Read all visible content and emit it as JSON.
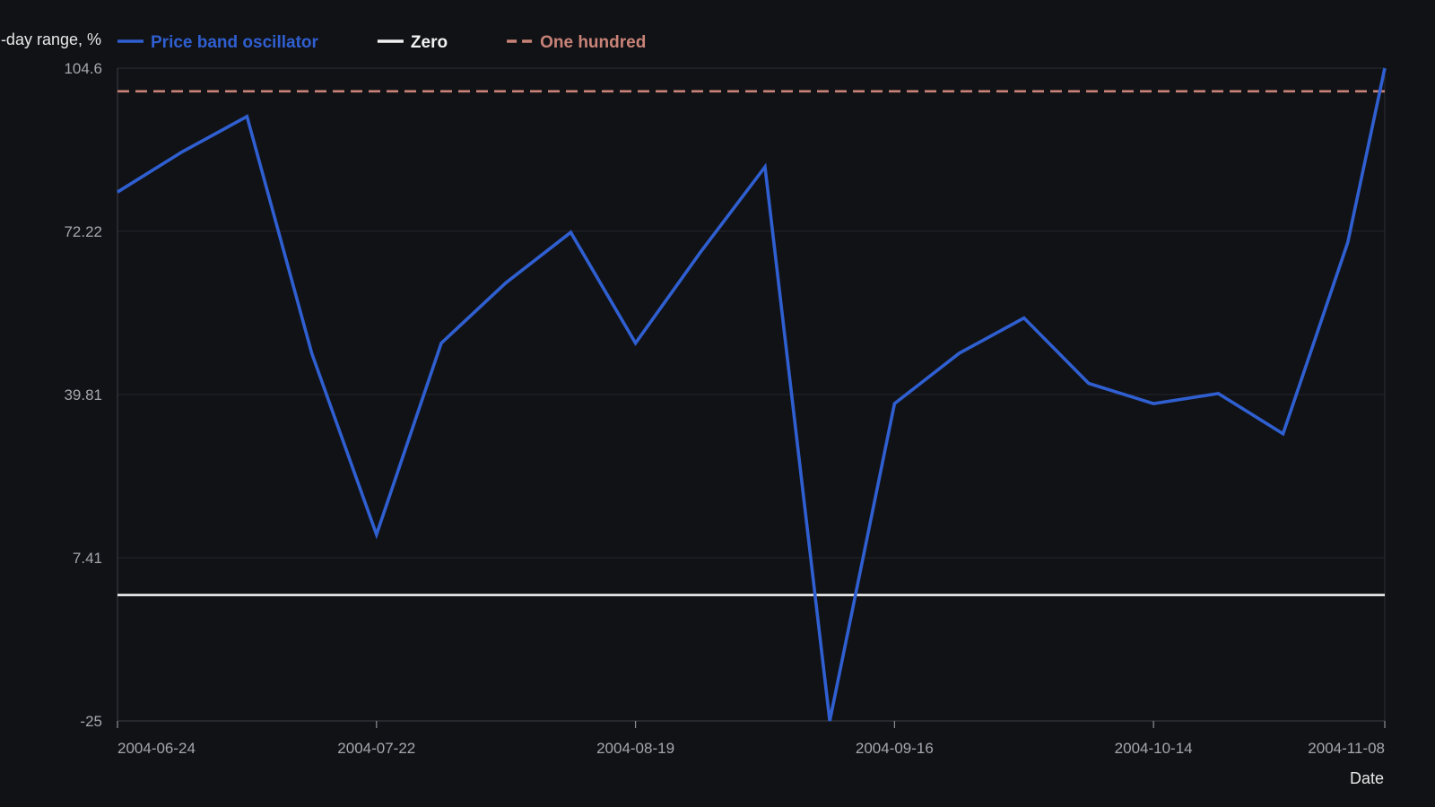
{
  "chart_data": {
    "type": "line",
    "ylabel": "…-day range, %",
    "xlabel": "Date",
    "ylim": [
      -25,
      104.6
    ],
    "y_ticks": [
      "104.6",
      "72.22",
      "39.81",
      "7.41",
      "-25"
    ],
    "x_ticks": [
      {
        "label": "2004-06-24",
        "date": "2004-06-24"
      },
      {
        "label": "2004-07-22",
        "date": "2004-07-22"
      },
      {
        "label": "2004-08-19",
        "date": "2004-08-19"
      },
      {
        "label": "2004-09-16",
        "date": "2004-09-16"
      },
      {
        "label": "2004-10-14",
        "date": "2004-10-14"
      },
      {
        "label": "2004-11-08",
        "date": "2004-11-08"
      }
    ],
    "xlim": [
      "2004-06-24",
      "2004-11-08"
    ],
    "grid": true,
    "legend_position": "top-left",
    "series": [
      {
        "name": "Price band oscillator",
        "color": "#2f5fd0",
        "style": "solid",
        "points": [
          {
            "x": "2004-06-24",
            "y": 80
          },
          {
            "x": "2004-07-01",
            "y": 88
          },
          {
            "x": "2004-07-08",
            "y": 95
          },
          {
            "x": "2004-07-15",
            "y": 48
          },
          {
            "x": "2004-07-22",
            "y": 12
          },
          {
            "x": "2004-07-29",
            "y": 50
          },
          {
            "x": "2004-08-05",
            "y": 62
          },
          {
            "x": "2004-08-12",
            "y": 72
          },
          {
            "x": "2004-08-19",
            "y": 50
          },
          {
            "x": "2004-08-26",
            "y": 68
          },
          {
            "x": "2004-09-02",
            "y": 85
          },
          {
            "x": "2004-09-09",
            "y": -25
          },
          {
            "x": "2004-09-16",
            "y": 38
          },
          {
            "x": "2004-09-23",
            "y": 48
          },
          {
            "x": "2004-09-30",
            "y": 55
          },
          {
            "x": "2004-10-07",
            "y": 42
          },
          {
            "x": "2004-10-14",
            "y": 38
          },
          {
            "x": "2004-10-21",
            "y": 40
          },
          {
            "x": "2004-10-28",
            "y": 32
          },
          {
            "x": "2004-11-04",
            "y": 70
          },
          {
            "x": "2004-11-08",
            "y": 104.6
          }
        ]
      },
      {
        "name": "Zero",
        "color": "#f2f2f2",
        "style": "solid",
        "points": [
          {
            "x": "2004-06-24",
            "y": 0
          },
          {
            "x": "2004-11-08",
            "y": 0
          }
        ]
      },
      {
        "name": "One hundred",
        "color": "#c98378",
        "style": "dashed",
        "points": [
          {
            "x": "2004-06-24",
            "y": 100
          },
          {
            "x": "2004-11-08",
            "y": 100
          }
        ]
      }
    ]
  }
}
